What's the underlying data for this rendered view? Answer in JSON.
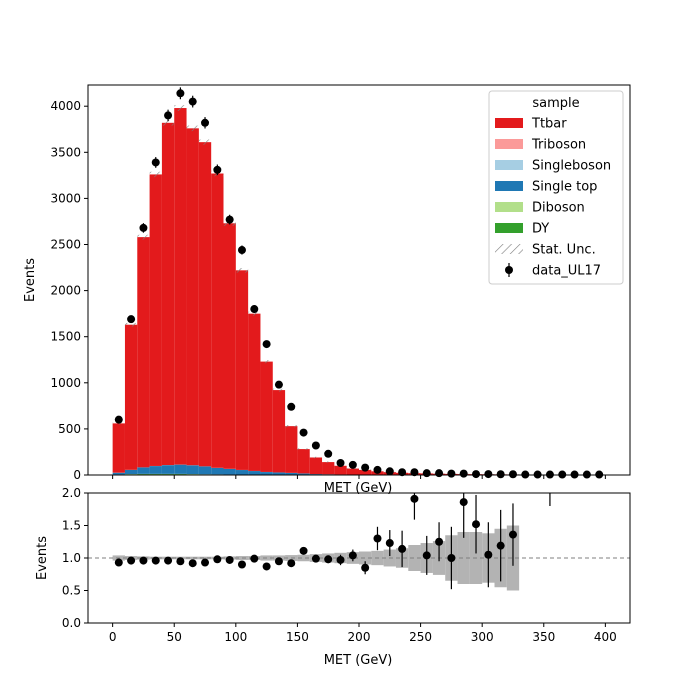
{
  "chart_data": [
    {
      "type": "bar",
      "panel": "main",
      "stacked": true,
      "histtype": "stepfilled",
      "xlabel": "MET (GeV)",
      "ylabel": "Events",
      "xlim": [
        -20,
        420
      ],
      "ylim": [
        0,
        4230
      ],
      "x_ticks": [
        0,
        50,
        100,
        150,
        200,
        250,
        300,
        350,
        400
      ],
      "y_ticks": [
        0,
        500,
        1000,
        1500,
        2000,
        2500,
        3000,
        3500,
        4000
      ],
      "bin_edges": [
        0,
        10,
        20,
        30,
        40,
        50,
        60,
        70,
        80,
        90,
        100,
        110,
        120,
        130,
        140,
        150,
        160,
        170,
        180,
        190,
        200,
        210,
        220,
        230,
        240,
        250,
        260,
        270,
        280,
        290,
        300,
        310,
        320,
        330,
        340,
        350,
        360,
        370,
        380,
        390,
        400
      ],
      "legend": {
        "title": "sample",
        "placement": "top-right"
      },
      "series": [
        {
          "name": "DY",
          "color": "#33a02c",
          "kind": "stack",
          "values": [
            5,
            8,
            10,
            10,
            10,
            10,
            8,
            6,
            5,
            4,
            3,
            2,
            1,
            1,
            1,
            0,
            0,
            0,
            0,
            0,
            0,
            0,
            0,
            0,
            0,
            0,
            0,
            0,
            0,
            0,
            0,
            0,
            0,
            0,
            0,
            0,
            0,
            0,
            0,
            0
          ]
        },
        {
          "name": "Diboson",
          "color": "#b2df8a",
          "kind": "stack",
          "values": [
            1,
            2,
            2,
            2,
            2,
            2,
            2,
            2,
            2,
            2,
            1,
            1,
            1,
            1,
            1,
            1,
            0,
            0,
            0,
            0,
            0,
            0,
            0,
            0,
            0,
            0,
            0,
            0,
            0,
            0,
            0,
            0,
            0,
            0,
            0,
            0,
            0,
            0,
            0,
            0
          ]
        },
        {
          "name": "Single top",
          "color": "#1f78b4",
          "kind": "stack",
          "values": [
            18,
            45,
            70,
            85,
            95,
            100,
            95,
            85,
            70,
            60,
            50,
            40,
            30,
            25,
            20,
            15,
            10,
            8,
            6,
            5,
            4,
            3,
            3,
            2,
            2,
            2,
            1,
            1,
            1,
            1,
            1,
            1,
            1,
            0,
            0,
            0,
            0,
            0,
            0,
            0
          ]
        },
        {
          "name": "Singleboson",
          "color": "#a6cee3",
          "kind": "stack",
          "values": [
            1,
            1,
            1,
            1,
            1,
            1,
            1,
            1,
            1,
            1,
            1,
            1,
            1,
            1,
            1,
            1,
            0,
            0,
            0,
            0,
            0,
            0,
            0,
            0,
            0,
            0,
            0,
            0,
            0,
            0,
            0,
            0,
            0,
            0,
            0,
            0,
            0,
            0,
            0,
            0
          ]
        },
        {
          "name": "Triboson",
          "color": "#fb9a99",
          "kind": "stack",
          "values": [
            0,
            0,
            0,
            0,
            0,
            0,
            0,
            0,
            0,
            0,
            0,
            0,
            0,
            0,
            0,
            0,
            0,
            0,
            0,
            0,
            0,
            0,
            0,
            0,
            0,
            0,
            0,
            0,
            0,
            0,
            0,
            0,
            0,
            0,
            0,
            0,
            0,
            0,
            0,
            0
          ]
        },
        {
          "name": "Ttbar",
          "color": "#e31a1c",
          "kind": "stack",
          "values": [
            535,
            1574,
            2497,
            3162,
            3712,
            3867,
            3654,
            3516,
            3192,
            2663,
            2165,
            1706,
            1197,
            893,
            507,
            264,
            180,
            132,
            94,
            65,
            51,
            37,
            28,
            22,
            18,
            15,
            13,
            11,
            9,
            8,
            7,
            6,
            5,
            5,
            4,
            3,
            3,
            2,
            2,
            2
          ]
        },
        {
          "name": "Stat. Unc.",
          "kind": "hatch",
          "color": "#7f7f7f",
          "rel_unc": [
            0.02,
            0.012,
            0.01,
            0.009,
            0.008,
            0.008,
            0.008,
            0.008,
            0.009,
            0.01,
            0.011,
            0.012,
            0.014,
            0.017,
            0.022,
            0.03,
            0.04,
            0.05,
            0.06,
            0.07,
            0.08,
            0.1,
            0.12,
            0.14,
            0.17,
            0.2,
            0.22,
            0.25,
            0.28,
            0.3,
            0.33,
            0.36,
            0.38,
            0.4,
            0.45,
            0.5,
            0.55,
            0.6,
            0.65,
            0.7
          ]
        },
        {
          "name": "data_UL17",
          "kind": "errorbar",
          "color": "#000000",
          "x": [
            5,
            15,
            25,
            35,
            45,
            55,
            65,
            75,
            85,
            95,
            105,
            115,
            125,
            135,
            145,
            155,
            165,
            175,
            185,
            195,
            205,
            215,
            225,
            235,
            245,
            255,
            265,
            275,
            285,
            295,
            305,
            315,
            325,
            335,
            345,
            355,
            365,
            375,
            385,
            395
          ],
          "values": [
            600,
            1690,
            2680,
            3390,
            3900,
            4140,
            4050,
            3820,
            3310,
            2770,
            2440,
            1800,
            1420,
            980,
            740,
            460,
            320,
            230,
            130,
            110,
            80,
            55,
            40,
            30,
            30,
            20,
            20,
            15,
            15,
            10,
            10,
            8,
            8,
            5,
            5,
            5,
            5,
            5,
            5,
            5
          ]
        }
      ]
    },
    {
      "type": "scatter",
      "panel": "ratio",
      "xlabel": "MET (GeV)",
      "ylabel": "Events",
      "xlim": [
        -20,
        420
      ],
      "ylim": [
        0,
        2.0
      ],
      "x_ticks": [
        0,
        50,
        100,
        150,
        200,
        250,
        300,
        350,
        400
      ],
      "y_ticks": [
        0.0,
        0.5,
        1.0,
        1.5,
        2.0
      ],
      "reference_line": 1.0,
      "unc_band": {
        "color": "#b3b3b3",
        "rel_unc": [
          0.04,
          0.03,
          0.025,
          0.02,
          0.02,
          0.02,
          0.02,
          0.02,
          0.02,
          0.025,
          0.03,
          0.03,
          0.04,
          0.04,
          0.045,
          0.05,
          0.06,
          0.07,
          0.08,
          0.09,
          0.1,
          0.11,
          0.13,
          0.15,
          0.2,
          0.23,
          0.26,
          0.35,
          0.4,
          0.4,
          0.38,
          0.45,
          0.5
        ]
      },
      "points": {
        "x": [
          5,
          15,
          25,
          35,
          45,
          55,
          65,
          75,
          85,
          95,
          105,
          115,
          125,
          135,
          145,
          155,
          165,
          175,
          185,
          195,
          205,
          215,
          225,
          235,
          245,
          255,
          265,
          275,
          285,
          295,
          305,
          315,
          325
        ],
        "y": [
          0.93,
          0.96,
          0.96,
          0.96,
          0.96,
          0.95,
          0.92,
          0.93,
          0.98,
          0.97,
          0.9,
          0.99,
          0.87,
          0.95,
          0.92,
          1.11,
          0.99,
          0.98,
          0.97,
          1.04,
          0.85,
          1.3,
          1.23,
          1.14,
          1.91,
          1.04,
          1.25,
          1.0,
          1.86,
          1.52,
          1.05,
          1.19,
          1.36
        ],
        "err": [
          0.02,
          0.02,
          0.02,
          0.02,
          0.02,
          0.02,
          0.02,
          0.02,
          0.02,
          0.02,
          0.02,
          0.02,
          0.03,
          0.03,
          0.04,
          0.05,
          0.05,
          0.06,
          0.08,
          0.09,
          0.1,
          0.18,
          0.2,
          0.28,
          0.32,
          0.3,
          0.3,
          0.48,
          0.55,
          0.45,
          0.5,
          0.55,
          0.48
        ],
        "clipped_up_at_x": [
          355
        ]
      }
    }
  ]
}
